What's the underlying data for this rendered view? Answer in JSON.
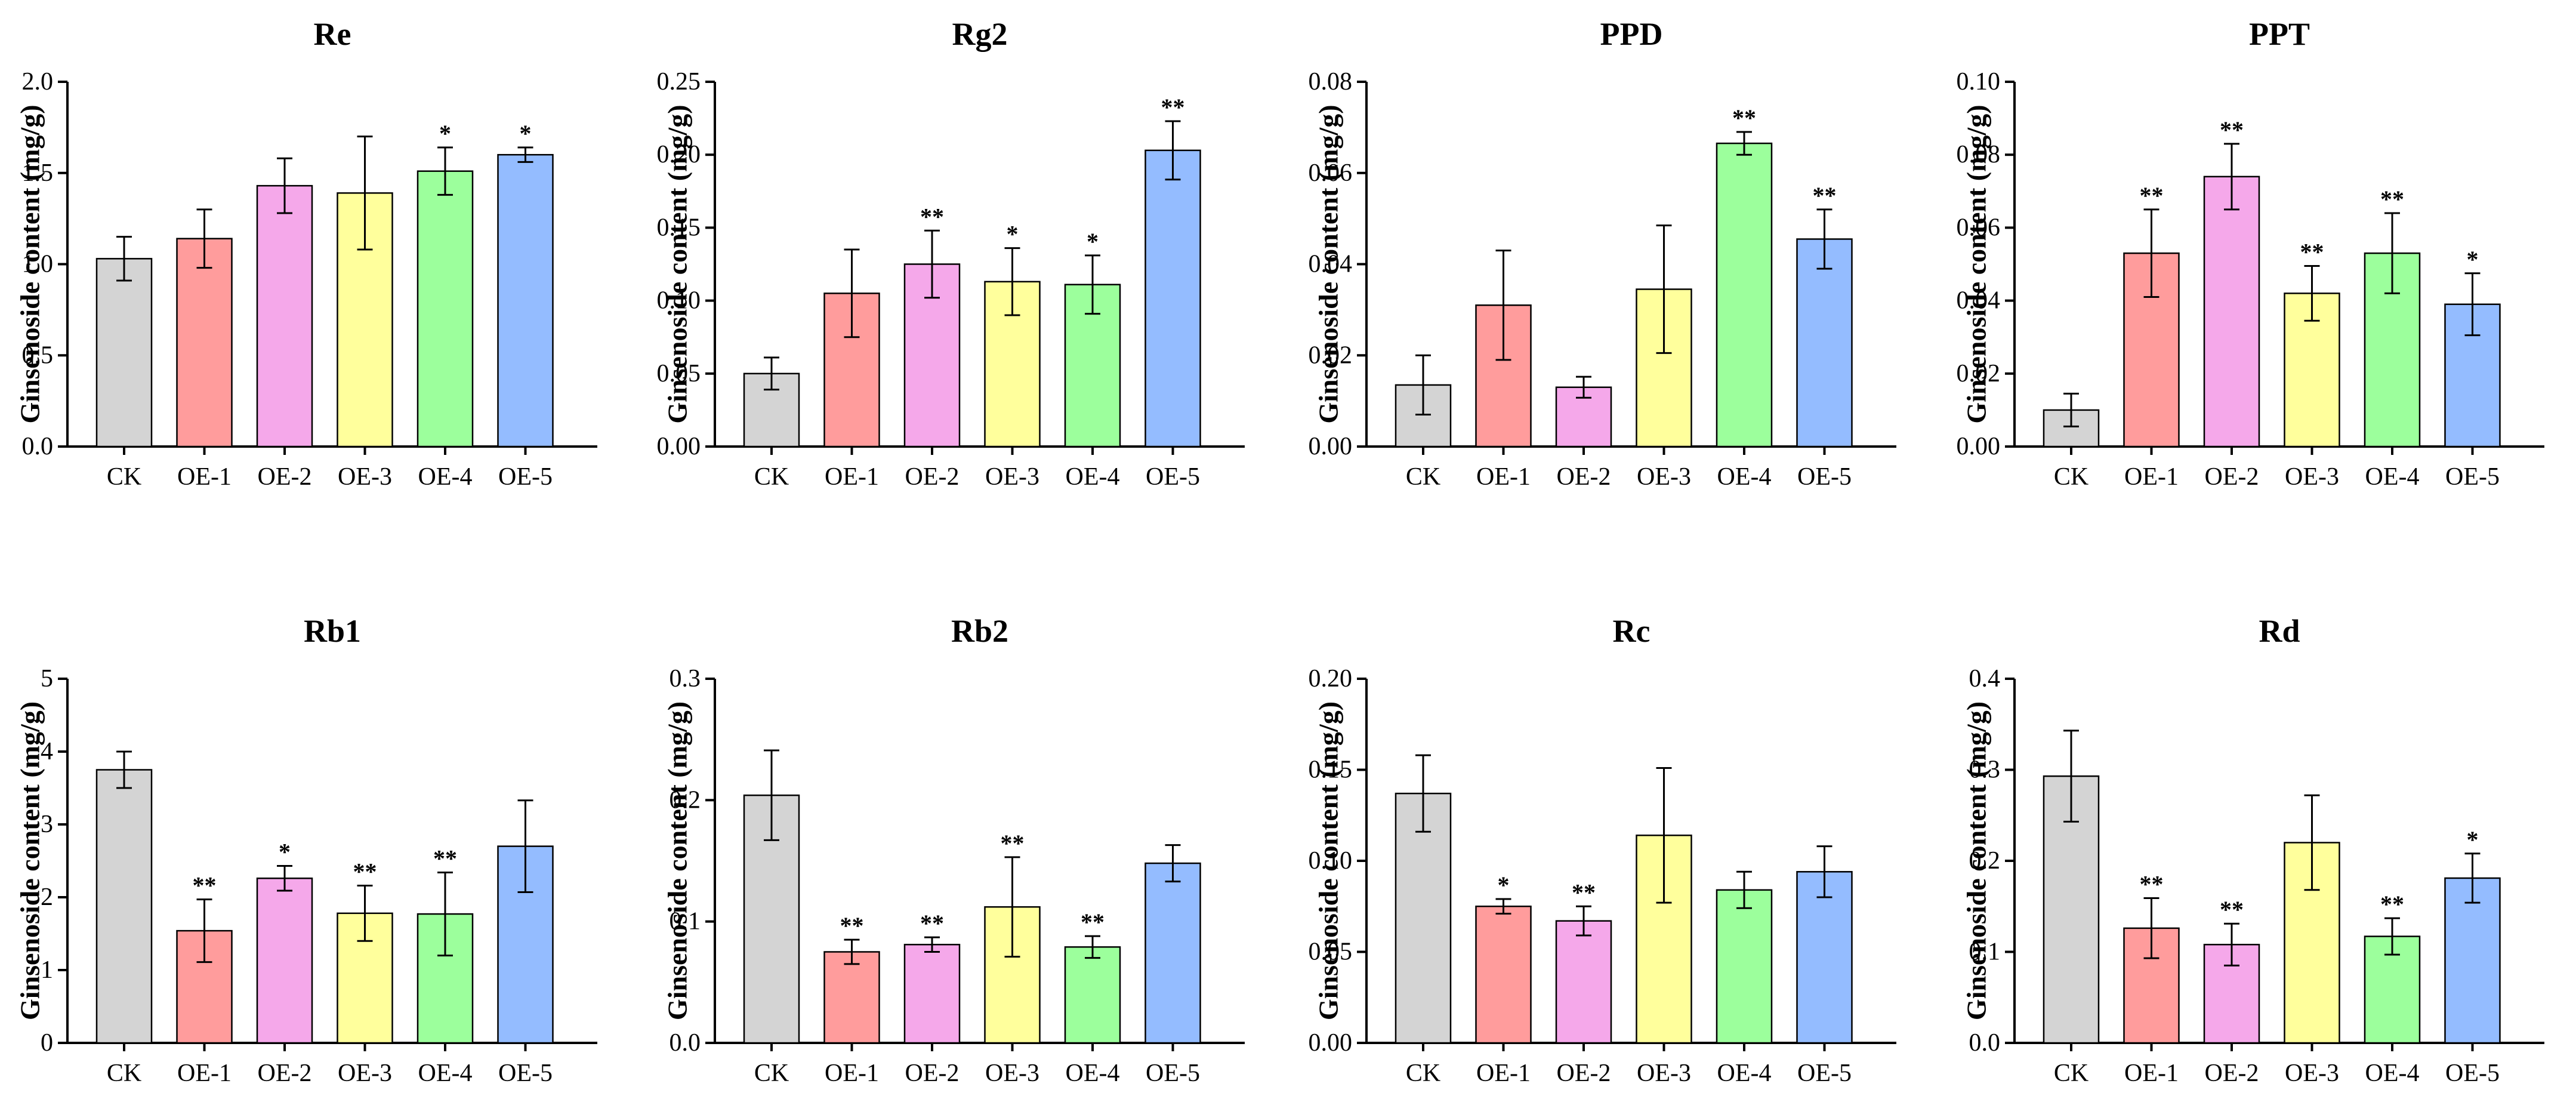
{
  "figure": {
    "ylabel": "Ginsenoside content (mg/g)"
  },
  "colors": {
    "CK": "#d4d4d4",
    "OE-1": "#ff9c9c",
    "OE-2": "#f5a8ea",
    "OE-3": "#ffff9c",
    "OE-4": "#9cff9c",
    "OE-5": "#94bcff"
  },
  "chart_data": [
    {
      "type": "bar",
      "title": "Re",
      "ylabel": "Ginsenoside content (mg/g)",
      "categories": [
        "CK",
        "OE-1",
        "OE-2",
        "OE-3",
        "OE-4",
        "OE-5"
      ],
      "values": [
        1.03,
        1.14,
        1.43,
        1.39,
        1.51,
        1.6
      ],
      "errors": [
        0.12,
        0.16,
        0.15,
        0.31,
        0.13,
        0.04
      ],
      "significance": [
        "",
        "",
        "",
        "",
        "*",
        "*"
      ],
      "ylim": [
        0,
        2.0
      ],
      "ticks": [
        "0.0",
        "0.5",
        "1.0",
        "1.5",
        "2.0"
      ]
    },
    {
      "type": "bar",
      "title": "Rg2",
      "ylabel": "Ginsenoside content (mg/g)",
      "categories": [
        "CK",
        "OE-1",
        "OE-2",
        "OE-3",
        "OE-4",
        "OE-5"
      ],
      "values": [
        0.05,
        0.105,
        0.125,
        0.113,
        0.111,
        0.203
      ],
      "errors": [
        0.011,
        0.03,
        0.023,
        0.023,
        0.02,
        0.02
      ],
      "significance": [
        "",
        "",
        "**",
        "*",
        "*",
        "**"
      ],
      "ylim": [
        0,
        0.25
      ],
      "ticks": [
        "0.00",
        "0.05",
        "0.10",
        "0.15",
        "0.20",
        "0.25"
      ]
    },
    {
      "type": "bar",
      "title": "PPD",
      "ylabel": "Ginsenoside content (mg/g)",
      "categories": [
        "CK",
        "OE-1",
        "OE-2",
        "OE-3",
        "OE-4",
        "OE-5"
      ],
      "values": [
        0.0135,
        0.031,
        0.013,
        0.0345,
        0.0665,
        0.0455
      ],
      "errors": [
        0.0065,
        0.012,
        0.0023,
        0.014,
        0.0025,
        0.0065
      ],
      "significance": [
        "",
        "",
        "",
        "",
        "**",
        "**"
      ],
      "ylim": [
        0,
        0.08
      ],
      "ticks": [
        "0.00",
        "0.02",
        "0.04",
        "0.06",
        "0.08"
      ]
    },
    {
      "type": "bar",
      "title": "PPT",
      "ylabel": "Ginsenoside content (mg/g)",
      "categories": [
        "CK",
        "OE-1",
        "OE-2",
        "OE-3",
        "OE-4",
        "OE-5"
      ],
      "values": [
        0.01,
        0.053,
        0.074,
        0.042,
        0.053,
        0.039
      ],
      "errors": [
        0.0045,
        0.012,
        0.009,
        0.0075,
        0.011,
        0.0085
      ],
      "significance": [
        "",
        "**",
        "**",
        "**",
        "**",
        "*"
      ],
      "ylim": [
        0,
        0.1
      ],
      "ticks": [
        "0.00",
        "0.02",
        "0.04",
        "0.06",
        "0.08",
        "0.10"
      ]
    },
    {
      "type": "bar",
      "title": "Rb1",
      "ylabel": "Ginsenoside content (mg/g)",
      "categories": [
        "CK",
        "OE-1",
        "OE-2",
        "OE-3",
        "OE-4",
        "OE-5"
      ],
      "values": [
        3.75,
        1.54,
        2.26,
        1.78,
        1.77,
        2.7
      ],
      "errors": [
        0.25,
        0.43,
        0.17,
        0.38,
        0.57,
        0.63
      ],
      "significance": [
        "",
        "**",
        "*",
        "**",
        "**",
        ""
      ],
      "ylim": [
        0,
        5
      ],
      "ticks": [
        "0",
        "1",
        "2",
        "3",
        "4",
        "5"
      ]
    },
    {
      "type": "bar",
      "title": "Rb2",
      "ylabel": "Ginsenoside content (mg/g)",
      "categories": [
        "CK",
        "OE-1",
        "OE-2",
        "OE-3",
        "OE-4",
        "OE-5"
      ],
      "values": [
        0.204,
        0.075,
        0.081,
        0.112,
        0.079,
        0.148
      ],
      "errors": [
        0.037,
        0.01,
        0.006,
        0.041,
        0.009,
        0.015
      ],
      "significance": [
        "",
        "**",
        "**",
        "**",
        "**",
        ""
      ],
      "ylim": [
        0,
        0.3
      ],
      "ticks": [
        "0.0",
        "0.1",
        "0.2",
        "0.3"
      ]
    },
    {
      "type": "bar",
      "title": "Rc",
      "ylabel": "Ginsenoside content (mg/g)",
      "categories": [
        "CK",
        "OE-1",
        "OE-2",
        "OE-3",
        "OE-4",
        "OE-5"
      ],
      "values": [
        0.137,
        0.075,
        0.067,
        0.114,
        0.084,
        0.094
      ],
      "errors": [
        0.021,
        0.004,
        0.008,
        0.037,
        0.01,
        0.014
      ],
      "significance": [
        "",
        "*",
        "**",
        "",
        "",
        ""
      ],
      "ylim": [
        0,
        0.2
      ],
      "ticks": [
        "0.00",
        "0.05",
        "0.10",
        "0.15",
        "0.20"
      ]
    },
    {
      "type": "bar",
      "title": "Rd",
      "ylabel": "Ginsenoside content (mg/g)",
      "categories": [
        "CK",
        "OE-1",
        "OE-2",
        "OE-3",
        "OE-4",
        "OE-5"
      ],
      "values": [
        0.293,
        0.126,
        0.108,
        0.22,
        0.117,
        0.181
      ],
      "errors": [
        0.05,
        0.033,
        0.023,
        0.052,
        0.02,
        0.027
      ],
      "significance": [
        "",
        "**",
        "**",
        "",
        "**",
        "*"
      ],
      "ylim": [
        0,
        0.4
      ],
      "ticks": [
        "0.0",
        "0.1",
        "0.2",
        "0.3",
        "0.4"
      ]
    }
  ]
}
